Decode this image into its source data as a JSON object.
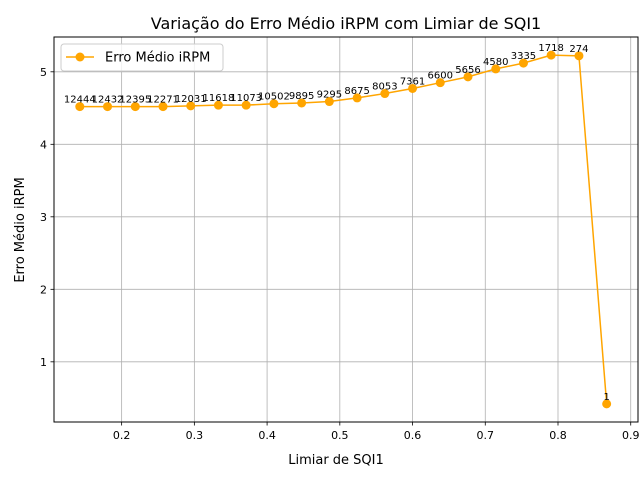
{
  "chart_data": {
    "type": "line",
    "title": "Variação do Erro Médio iRPM com Limiar de SQI1",
    "xlabel": "Limiar de SQI1",
    "ylabel": "Erro Médio iRPM",
    "xlim": [
      0.107,
      0.91
    ],
    "ylim": [
      0.17,
      5.48
    ],
    "xticks": [
      0.2,
      0.3,
      0.4,
      0.5,
      0.6,
      0.7,
      0.8,
      0.9
    ],
    "xtick_labels": [
      "0.2",
      "0.3",
      "0.4",
      "0.5",
      "0.6",
      "0.7",
      "0.8",
      "0.9"
    ],
    "yticks": [
      1,
      2,
      3,
      4,
      5
    ],
    "ytick_labels": [
      "1",
      "2",
      "3",
      "4",
      "5"
    ],
    "grid": true,
    "legend": "upper-left",
    "series": [
      {
        "name": "Erro Médio iRPM",
        "color": "#ffa500",
        "x": [
          0.1425,
          0.1806,
          0.2188,
          0.2569,
          0.295,
          0.3331,
          0.3712,
          0.4094,
          0.4475,
          0.4856,
          0.5238,
          0.5619,
          0.6,
          0.6381,
          0.6762,
          0.7144,
          0.7525,
          0.7906,
          0.8288,
          0.8669
        ],
        "y": [
          4.52,
          4.52,
          4.52,
          4.52,
          4.53,
          4.54,
          4.54,
          4.56,
          4.57,
          4.59,
          4.64,
          4.7,
          4.77,
          4.85,
          4.93,
          5.04,
          5.12,
          5.23,
          5.22,
          0.42
        ],
        "labels": [
          "12444",
          "12432",
          "12395",
          "12271",
          "12031",
          "11618",
          "11073",
          "10502",
          "9895",
          "9295",
          "8675",
          "8053",
          "7361",
          "6600",
          "5656",
          "4580",
          "3335",
          "1718",
          "274",
          "1"
        ]
      }
    ]
  }
}
